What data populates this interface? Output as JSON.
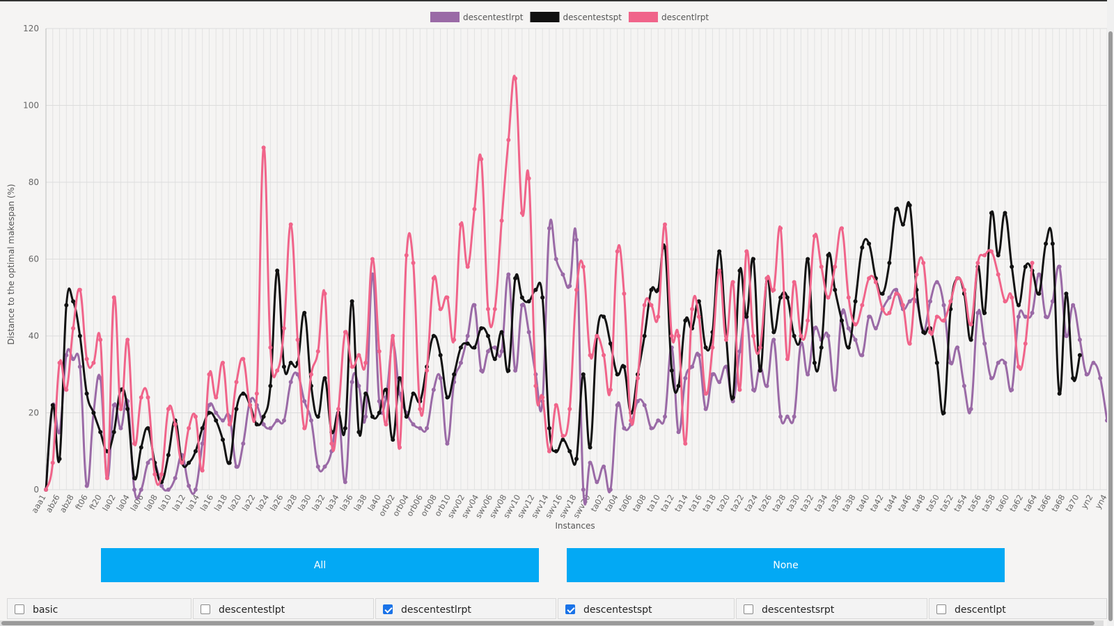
{
  "chart_data": {
    "type": "line",
    "xlabel": "Instances",
    "ylabel": "Distance to the optimal makespan (%)",
    "ylim": [
      0,
      120
    ],
    "yticks": [
      0,
      20,
      40,
      60,
      80,
      100,
      120
    ],
    "grid": true,
    "legend_position": "top",
    "tick_labels": [
      "aaa1",
      "abz6",
      "abz8",
      "ft06",
      "ft20",
      "la02",
      "la04",
      "la06",
      "la08",
      "la10",
      "la12",
      "la14",
      "la16",
      "la18",
      "la20",
      "la22",
      "la24",
      "la26",
      "la28",
      "la30",
      "la32",
      "la34",
      "la36",
      "la38",
      "la40",
      "orb02",
      "orb04",
      "orb06",
      "orb08",
      "orb10",
      "swv02",
      "swv04",
      "swv06",
      "swv08",
      "swv10",
      "swv12",
      "swv14",
      "swv16",
      "swv18",
      "swv20",
      "ta02",
      "ta04",
      "ta06",
      "ta08",
      "ta10",
      "ta12",
      "ta14",
      "ta16",
      "ta18",
      "ta20",
      "ta22",
      "ta24",
      "ta26",
      "ta28",
      "ta30",
      "ta32",
      "ta34",
      "ta36",
      "ta38",
      "ta40",
      "ta42",
      "ta44",
      "ta46",
      "ta48",
      "ta50",
      "ta52",
      "ta54",
      "ta56",
      "ta58",
      "ta60",
      "ta62",
      "ta64",
      "ta66",
      "ta68",
      "ta70",
      "yn2",
      "yn4"
    ],
    "series": [
      {
        "name": "descentestlrpt",
        "color": "#9a6aa6",
        "values": [
          0,
          22,
          15,
          35,
          34,
          32,
          1,
          20,
          29,
          3,
          22,
          16,
          23,
          0,
          0,
          7,
          7,
          1,
          0,
          3,
          9,
          1,
          0,
          12,
          22,
          20,
          18,
          19,
          6,
          12,
          23,
          22,
          17,
          16,
          18,
          18,
          28,
          30,
          23,
          18,
          6,
          6,
          10,
          20,
          2,
          28,
          27,
          19,
          56,
          23,
          24,
          38,
          25,
          20,
          17,
          16,
          16,
          26,
          29,
          12,
          28,
          33,
          40,
          48,
          31,
          36,
          37,
          36,
          56,
          31,
          48,
          41,
          30,
          23,
          68,
          60,
          56,
          53,
          65,
          0,
          7,
          2,
          6,
          0,
          22,
          16,
          17,
          23,
          22,
          16,
          18,
          19,
          37,
          15,
          29,
          32,
          35,
          21,
          30,
          28,
          32,
          23,
          36,
          45,
          26,
          32,
          27,
          39,
          19,
          19,
          19,
          38,
          30,
          42,
          39,
          40,
          26,
          46,
          42,
          39,
          35,
          45,
          42,
          47,
          50,
          52,
          47,
          49,
          49,
          41,
          49,
          54,
          48,
          33,
          37,
          27,
          21,
          46,
          38,
          29,
          33,
          33,
          26,
          45,
          45,
          46,
          56,
          45,
          49,
          58,
          40,
          48,
          39,
          30,
          33,
          29,
          18
        ]
      },
      {
        "name": "descentestspt",
        "color": "#111111",
        "values": [
          0,
          22,
          8,
          48,
          49,
          40,
          25,
          20,
          15,
          10,
          15,
          26,
          21,
          3,
          11,
          16,
          7,
          2,
          9,
          18,
          7,
          7,
          10,
          16,
          20,
          18,
          13,
          7,
          21,
          25,
          22,
          17,
          19,
          27,
          57,
          32,
          33,
          33,
          46,
          27,
          19,
          29,
          15,
          20,
          16,
          49,
          15,
          25,
          19,
          20,
          26,
          13,
          29,
          19,
          25,
          23,
          32,
          40,
          35,
          24,
          30,
          37,
          38,
          37,
          42,
          40,
          34,
          41,
          31,
          55,
          50,
          49,
          52,
          50,
          16,
          10,
          13,
          10,
          8,
          30,
          11,
          40,
          45,
          38,
          30,
          32,
          20,
          30,
          40,
          52,
          52,
          63,
          31,
          27,
          44,
          42,
          49,
          37,
          41,
          62,
          40,
          24,
          57,
          45,
          60,
          31,
          55,
          41,
          50,
          50,
          40,
          40,
          60,
          33,
          37,
          61,
          52,
          44,
          37,
          49,
          63,
          64,
          55,
          51,
          59,
          73,
          69,
          74,
          52,
          41,
          42,
          33,
          20,
          47,
          55,
          51,
          39,
          58,
          46,
          72,
          61,
          72,
          58,
          48,
          58,
          57,
          51,
          64,
          64,
          25,
          51,
          29,
          35
        ]
      },
      {
        "name": "descentlrpt",
        "color": "#f0648a",
        "values": [
          0,
          7,
          33,
          26,
          42,
          52,
          34,
          33,
          39,
          3,
          50,
          21,
          39,
          12,
          24,
          24,
          4,
          4,
          21,
          17,
          7,
          16,
          19,
          5,
          30,
          24,
          33,
          17,
          28,
          34,
          22,
          25,
          89,
          37,
          31,
          42,
          69,
          39,
          16,
          30,
          36,
          51,
          12,
          21,
          41,
          32,
          35,
          33,
          60,
          36,
          17,
          40,
          11,
          61,
          59,
          21,
          31,
          55,
          47,
          50,
          39,
          69,
          58,
          73,
          86,
          47,
          47,
          70,
          91,
          107,
          72,
          81,
          27,
          24,
          10,
          22,
          14,
          21,
          52,
          58,
          35,
          40,
          35,
          26,
          62,
          51,
          18,
          29,
          48,
          48,
          45,
          69,
          40,
          40,
          12,
          47,
          45,
          25,
          37,
          57,
          39,
          54,
          26,
          62,
          40,
          37,
          55,
          52,
          68,
          34,
          54,
          40,
          44,
          66,
          58,
          50,
          58,
          68,
          50,
          43,
          48,
          55,
          54,
          47,
          46,
          51,
          48,
          38,
          56,
          59,
          41,
          45,
          44,
          49,
          55,
          52,
          43,
          59,
          61,
          62,
          56,
          49,
          50,
          32,
          38,
          59
        ]
      }
    ]
  },
  "buttons": {
    "all_label": "All",
    "none_label": "None"
  },
  "checkboxes": [
    {
      "label": "basic",
      "checked": false
    },
    {
      "label": "descentestlpt",
      "checked": false
    },
    {
      "label": "descentestlrpt",
      "checked": true
    },
    {
      "label": "descentestspt",
      "checked": true
    },
    {
      "label": "descentestsrpt",
      "checked": false
    },
    {
      "label": "descentlpt",
      "checked": false
    }
  ]
}
